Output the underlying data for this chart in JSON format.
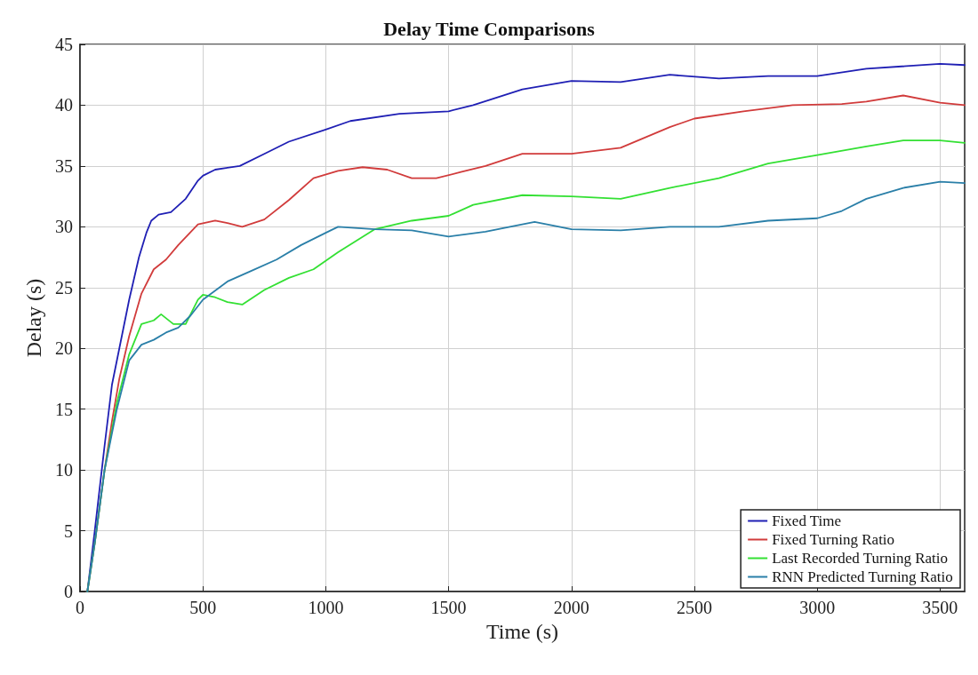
{
  "chart_data": {
    "type": "line",
    "title": "Delay Time Comparisons",
    "xlabel": "Time (s)",
    "ylabel": "Delay (s)",
    "xlim": [
      0,
      3600
    ],
    "xticks": [
      0,
      500,
      1000,
      1500,
      2000,
      2500,
      3000,
      3500
    ],
    "ylim": [
      0,
      45
    ],
    "yticks": [
      0,
      5,
      10,
      15,
      20,
      25,
      30,
      35,
      40,
      45
    ],
    "grid": true,
    "legend": "bottom right",
    "marker": "none",
    "line_style": "solid",
    "series": [
      {
        "name": "Fixed Time",
        "color": "#1f1fb4",
        "x": [
          30,
          60,
          100,
          130,
          160,
          200,
          240,
          270,
          290,
          320,
          370,
          430,
          480,
          500,
          550,
          650,
          750,
          850,
          1000,
          1100,
          1300,
          1500,
          1600,
          1800,
          2000,
          2200,
          2400,
          2600,
          2800,
          3000,
          3200,
          3500,
          3600
        ],
        "values": [
          0,
          5,
          12,
          17,
          20,
          24,
          27.5,
          29.5,
          30.5,
          31,
          31.2,
          32.3,
          33.8,
          34.2,
          34.7,
          35,
          36,
          37,
          38,
          38.7,
          39.3,
          39.5,
          40,
          41.3,
          42,
          41.9,
          42.5,
          42.2,
          42.4,
          42.4,
          43,
          43.4,
          43.3
        ]
      },
      {
        "name": "Fixed Turning Ratio",
        "color": "#d13b3b",
        "x": [
          30,
          60,
          100,
          130,
          160,
          200,
          250,
          300,
          350,
          400,
          480,
          550,
          600,
          660,
          750,
          850,
          950,
          1050,
          1150,
          1250,
          1350,
          1450,
          1550,
          1650,
          1800,
          2000,
          2200,
          2400,
          2500,
          2700,
          2900,
          3100,
          3200,
          3350,
          3500,
          3600
        ],
        "values": [
          0,
          4,
          10,
          14,
          17.5,
          21,
          24.5,
          26.5,
          27.3,
          28.5,
          30.2,
          30.5,
          30.3,
          30,
          30.6,
          32.2,
          34,
          34.6,
          34.9,
          34.7,
          34,
          34,
          34.5,
          35,
          36,
          36,
          36.5,
          38.2,
          38.9,
          39.5,
          40,
          40.1,
          40.3,
          40.8,
          40.2,
          40
        ]
      },
      {
        "name": "Last Recorded Turning Ratio",
        "color": "#33e033",
        "x": [
          30,
          60,
          100,
          150,
          200,
          250,
          300,
          330,
          380,
          430,
          480,
          500,
          550,
          600,
          660,
          750,
          850,
          950,
          1050,
          1200,
          1350,
          1500,
          1600,
          1800,
          2000,
          2200,
          2400,
          2600,
          2800,
          3000,
          3200,
          3350,
          3500,
          3600
        ],
        "values": [
          0,
          4,
          10,
          15.5,
          19.5,
          22,
          22.3,
          22.8,
          22,
          22,
          24,
          24.4,
          24.2,
          23.8,
          23.6,
          24.8,
          25.8,
          26.5,
          27.9,
          29.8,
          30.5,
          30.9,
          31.8,
          32.6,
          32.5,
          32.3,
          33.2,
          34,
          35.2,
          35.9,
          36.6,
          37.1,
          37.1,
          36.9
        ]
      },
      {
        "name": "RNN Predicted Turning Ratio",
        "color": "#2a7fa8",
        "x": [
          30,
          60,
          100,
          150,
          200,
          250,
          300,
          350,
          400,
          450,
          500,
          600,
          700,
          800,
          900,
          1000,
          1050,
          1200,
          1350,
          1500,
          1650,
          1850,
          2000,
          2200,
          2400,
          2600,
          2800,
          3000,
          3100,
          3200,
          3350,
          3500,
          3600
        ],
        "values": [
          0,
          4,
          10,
          15,
          19,
          20.3,
          20.7,
          21.3,
          21.7,
          22.7,
          24,
          25.5,
          26.4,
          27.3,
          28.5,
          29.5,
          30,
          29.8,
          29.7,
          29.2,
          29.6,
          30.4,
          29.8,
          29.7,
          30,
          30,
          30.5,
          30.7,
          31.3,
          32.3,
          33.2,
          33.7,
          33.6
        ]
      }
    ]
  }
}
